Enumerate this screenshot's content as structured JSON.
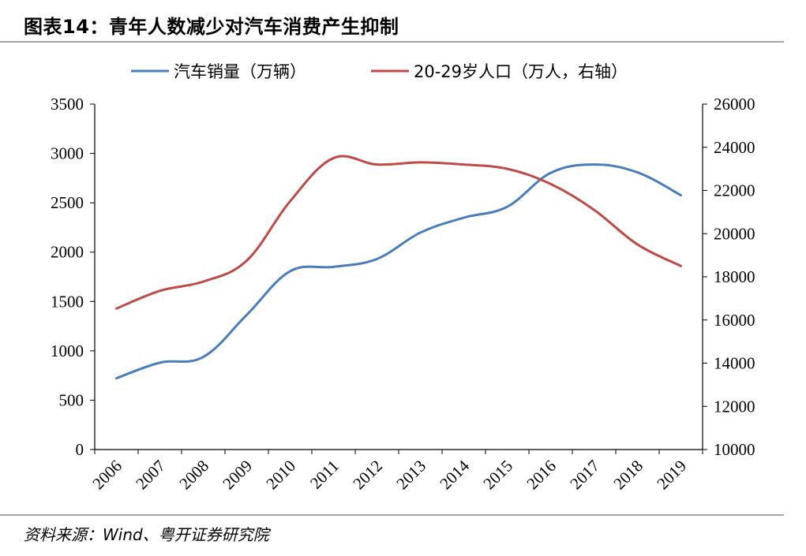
{
  "title": "图表14：青年人数减少对汽车消费产生抑制",
  "source": "资料来源：Wind、粤开证券研究院",
  "chart_data": {
    "type": "line",
    "categories": [
      "2006",
      "2007",
      "2008",
      "2009",
      "2010",
      "2011",
      "2012",
      "2013",
      "2014",
      "2015",
      "2016",
      "2017",
      "2018",
      "2019"
    ],
    "series": [
      {
        "name": "汽车销量（万辆）",
        "axis": "left",
        "color": "#4a7ebb",
        "values": [
          722,
          880,
          938,
          1364,
          1806,
          1851,
          1931,
          2198,
          2349,
          2460,
          2803,
          2888,
          2808,
          2577
        ]
      },
      {
        "name": "20-29岁人口（万人，右轴）",
        "axis": "right",
        "color": "#be4b48",
        "values": [
          16530,
          17350,
          17780,
          18750,
          21500,
          23500,
          23200,
          23300,
          23200,
          23000,
          22300,
          21100,
          19500,
          18500
        ]
      }
    ],
    "y_left": {
      "min": 0,
      "max": 3500,
      "ticks": [
        "0",
        "500",
        "1000",
        "1500",
        "2000",
        "2500",
        "3000",
        "3500"
      ]
    },
    "y_right": {
      "min": 10000,
      "max": 26000,
      "ticks": [
        "10000",
        "12000",
        "14000",
        "16000",
        "18000",
        "20000",
        "22000",
        "24000",
        "26000"
      ]
    },
    "legend_position": "top",
    "grid": false
  }
}
